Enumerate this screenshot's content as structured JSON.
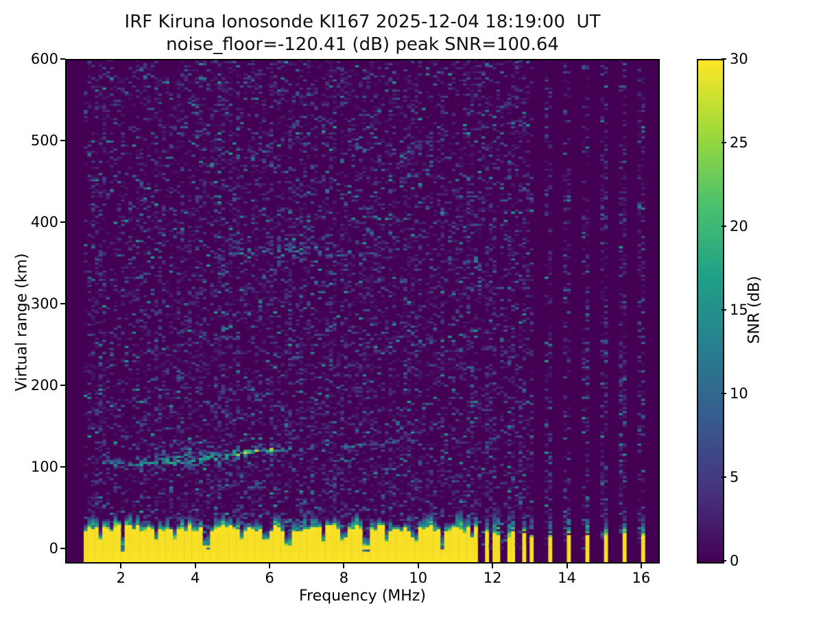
{
  "figure": {
    "title_line1": "IRF Kiruna Ionosonde KI167 2025-12-04 18:19:00  UT",
    "title_line2": "noise_floor=-120.41 (dB) peak SNR=100.64",
    "station": "KI167",
    "timestamp_ut": "2025-12-04 18:19:00",
    "noise_floor_db": -120.41,
    "peak_snr_db": 100.64
  },
  "chart_data": {
    "type": "heatmap",
    "title": "IRF Kiruna Ionosonde KI167 2025-12-04 18:19:00  UT",
    "subtitle": "noise_floor=-120.41 (dB) peak SNR=100.64",
    "xlabel": "Frequency (MHz)",
    "ylabel": "Virtual range (km)",
    "colorbar_label": "SNR (dB)",
    "xlim": [
      0.5,
      16.5
    ],
    "ylim": [
      -18.5,
      600
    ],
    "clim": [
      0,
      30
    ],
    "xticks": [
      2,
      4,
      6,
      8,
      10,
      12,
      14,
      16
    ],
    "yticks": [
      0,
      100,
      200,
      300,
      400,
      500,
      600
    ],
    "colorbar_ticks": [
      0,
      5,
      10,
      15,
      20,
      25,
      30
    ],
    "colormap": "viridis",
    "viridis_stops": [
      [
        0.0,
        "#440154"
      ],
      [
        0.14,
        "#46327e"
      ],
      [
        0.29,
        "#365c8d"
      ],
      [
        0.43,
        "#277f8e"
      ],
      [
        0.57,
        "#1fa187"
      ],
      [
        0.71,
        "#4ac16d"
      ],
      [
        0.86,
        "#a0da39"
      ],
      [
        1.0,
        "#fde725"
      ]
    ],
    "grid": {
      "nx": 160,
      "ny": 248
    },
    "seed": 7,
    "sweep_band": {
      "fmin": 0.96,
      "fmax": 11.62
    },
    "discrete_freqs_dense": [
      11.6,
      11.8,
      12.0,
      12.2,
      12.4,
      12.6,
      12.8,
      13.0
    ],
    "discrete_freqs_sparse": [
      13.5,
      14.0,
      14.5,
      15.0,
      15.5,
      16.0
    ],
    "noise": {
      "density_sweep": 0.45,
      "density_columns": 0.4,
      "mean_db": 2.8,
      "max_db": 16,
      "bright_chance": 0.015
    },
    "ground_clutter": {
      "solid_top_km_min": 20,
      "solid_top_km_max": 30,
      "fringe_extra_min": 4,
      "fringe_extra_max": 18,
      "spike_chance": 0.1,
      "spike_extra": 10,
      "notch_start": 1.45,
      "notch_step_min": 0.45,
      "notch_step_rand": 0.5,
      "stripe_solid_min": 14,
      "stripe_solid_rand": 8,
      "stripe_top_min": 38,
      "stripe_top_rand": 14
    },
    "echo_traces": [
      {
        "f0": 1.55,
        "f1": 2.2,
        "r0": 103,
        "r1": 105,
        "amp": 14,
        "sd": 4.0,
        "dens": 0.55
      },
      {
        "f0": 2.2,
        "f1": 3.1,
        "r0": 104,
        "r1": 108,
        "amp": 16,
        "sd": 5.0,
        "dens": 0.6
      },
      {
        "f0": 3.15,
        "f1": 3.75,
        "r0": 105,
        "r1": 110,
        "amp": 18,
        "sd": 6.0,
        "dens": 0.65
      },
      {
        "f0": 3.8,
        "f1": 4.4,
        "r0": 107,
        "r1": 112,
        "amp": 16,
        "sd": 6.0,
        "dens": 0.6
      },
      {
        "f0": 4.5,
        "f1": 5.15,
        "r0": 110,
        "r1": 118,
        "amp": 18,
        "sd": 6.0,
        "dens": 0.65
      },
      {
        "f0": 5.15,
        "f1": 6.0,
        "r0": 116,
        "r1": 122,
        "amp": 24,
        "sd": 4.0,
        "dens": 0.8
      },
      {
        "f0": 6.0,
        "f1": 6.6,
        "r0": 120,
        "r1": 124,
        "amp": 14,
        "sd": 4.0,
        "dens": 0.5
      },
      {
        "f0": 6.7,
        "f1": 7.4,
        "r0": 122,
        "r1": 126,
        "amp": 8,
        "sd": 3.0,
        "dens": 0.35
      },
      {
        "f0": 7.9,
        "f1": 9.35,
        "r0": 124,
        "r1": 131,
        "amp": 12,
        "sd": 2.5,
        "dens": 0.6
      },
      {
        "f0": 9.4,
        "f1": 10.1,
        "r0": 132,
        "r1": 142,
        "amp": 6,
        "sd": 3.0,
        "dens": 0.3
      }
    ],
    "f_region_scatter": [
      {
        "f0": 4.5,
        "f1": 6.2,
        "r0": 362,
        "r1": 368,
        "amp": 9,
        "sd": 5.0,
        "dens": 0.18
      },
      {
        "f0": 6.25,
        "f1": 7.1,
        "r0": 360,
        "r1": 370,
        "amp": 14,
        "sd": 7.0,
        "dens": 0.38
      },
      {
        "f0": 7.1,
        "f1": 7.6,
        "r0": 358,
        "r1": 366,
        "amp": 10,
        "sd": 5.0,
        "dens": 0.3
      },
      {
        "f0": 7.6,
        "f1": 8.8,
        "r0": 359,
        "r1": 361,
        "amp": 9,
        "sd": 1.8,
        "dens": 0.5
      }
    ]
  }
}
